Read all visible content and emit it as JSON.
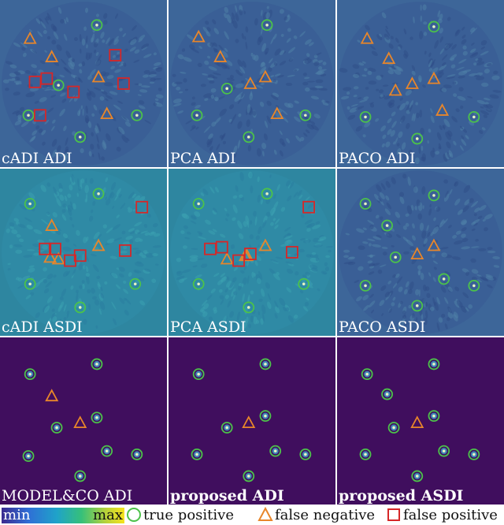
{
  "panels": [
    {
      "label": "cADI ADI",
      "bold": false,
      "theme": "blue",
      "circles": [
        [
          0.58,
          0.15
        ],
        [
          0.35,
          0.51
        ],
        [
          0.17,
          0.69
        ],
        [
          0.82,
          0.69
        ],
        [
          0.48,
          0.82
        ]
      ],
      "triangles": [
        [
          0.18,
          0.23
        ],
        [
          0.31,
          0.34
        ],
        [
          0.59,
          0.46
        ],
        [
          0.64,
          0.68
        ]
      ],
      "squares": [
        [
          0.69,
          0.33
        ],
        [
          0.21,
          0.49
        ],
        [
          0.28,
          0.47
        ],
        [
          0.74,
          0.5
        ],
        [
          0.44,
          0.55
        ],
        [
          0.24,
          0.69
        ]
      ]
    },
    {
      "label": "PCA ADI",
      "bold": false,
      "theme": "blue",
      "circles": [
        [
          0.59,
          0.15
        ],
        [
          0.35,
          0.53
        ],
        [
          0.17,
          0.69
        ],
        [
          0.82,
          0.69
        ],
        [
          0.48,
          0.82
        ]
      ],
      "triangles": [
        [
          0.18,
          0.22
        ],
        [
          0.31,
          0.34
        ],
        [
          0.49,
          0.5
        ],
        [
          0.58,
          0.46
        ],
        [
          0.65,
          0.68
        ]
      ],
      "squares": []
    },
    {
      "label": "PACO ADI",
      "bold": false,
      "theme": "blue",
      "circles": [
        [
          0.58,
          0.16
        ],
        [
          0.17,
          0.7
        ],
        [
          0.82,
          0.7
        ],
        [
          0.48,
          0.83
        ]
      ],
      "triangles": [
        [
          0.18,
          0.23
        ],
        [
          0.31,
          0.35
        ],
        [
          0.35,
          0.54
        ],
        [
          0.45,
          0.5
        ],
        [
          0.58,
          0.47
        ],
        [
          0.63,
          0.66
        ]
      ],
      "squares": []
    },
    {
      "label": "cADI ASDI",
      "bold": false,
      "theme": "teal",
      "circles": [
        [
          0.59,
          0.15
        ],
        [
          0.18,
          0.21
        ],
        [
          0.18,
          0.69
        ],
        [
          0.81,
          0.69
        ],
        [
          0.48,
          0.83
        ]
      ],
      "triangles": [
        [
          0.31,
          0.34
        ],
        [
          0.35,
          0.54
        ],
        [
          0.59,
          0.46
        ],
        [
          0.3,
          0.53
        ]
      ],
      "squares": [
        [
          0.85,
          0.23
        ],
        [
          0.27,
          0.48
        ],
        [
          0.33,
          0.48
        ],
        [
          0.48,
          0.52
        ],
        [
          0.42,
          0.55
        ],
        [
          0.75,
          0.49
        ]
      ]
    },
    {
      "label": "PCA ASDI",
      "bold": false,
      "theme": "teal",
      "circles": [
        [
          0.59,
          0.15
        ],
        [
          0.18,
          0.21
        ],
        [
          0.18,
          0.69
        ],
        [
          0.81,
          0.69
        ],
        [
          0.48,
          0.83
        ]
      ],
      "triangles": [
        [
          0.35,
          0.54
        ],
        [
          0.46,
          0.52
        ],
        [
          0.58,
          0.46
        ],
        [
          0.47,
          0.52
        ]
      ],
      "squares": [
        [
          0.84,
          0.23
        ],
        [
          0.25,
          0.48
        ],
        [
          0.32,
          0.47
        ],
        [
          0.49,
          0.51
        ],
        [
          0.42,
          0.55
        ],
        [
          0.74,
          0.5
        ]
      ]
    },
    {
      "label": "PACO ASDI",
      "bold": false,
      "theme": "blue",
      "circles": [
        [
          0.58,
          0.16
        ],
        [
          0.17,
          0.21
        ],
        [
          0.3,
          0.34
        ],
        [
          0.35,
          0.53
        ],
        [
          0.17,
          0.7
        ],
        [
          0.82,
          0.7
        ],
        [
          0.48,
          0.82
        ],
        [
          0.64,
          0.66
        ]
      ],
      "triangles": [
        [
          0.48,
          0.51
        ],
        [
          0.58,
          0.46
        ]
      ],
      "squares": []
    },
    {
      "label": "MODEL&CO ADI",
      "bold": false,
      "theme": "purple",
      "circles": [
        [
          0.58,
          0.16
        ],
        [
          0.18,
          0.22
        ],
        [
          0.34,
          0.54
        ],
        [
          0.58,
          0.48
        ],
        [
          0.17,
          0.71
        ],
        [
          0.64,
          0.68
        ],
        [
          0.82,
          0.7
        ],
        [
          0.48,
          0.83
        ]
      ],
      "triangles": [
        [
          0.31,
          0.35
        ],
        [
          0.48,
          0.51
        ]
      ],
      "squares": []
    },
    {
      "label": "proposed ADI",
      "bold": true,
      "theme": "purple",
      "circles": [
        [
          0.58,
          0.16
        ],
        [
          0.18,
          0.22
        ],
        [
          0.35,
          0.54
        ],
        [
          0.58,
          0.47
        ],
        [
          0.17,
          0.7
        ],
        [
          0.64,
          0.68
        ],
        [
          0.82,
          0.7
        ],
        [
          0.48,
          0.83
        ]
      ],
      "triangles": [
        [
          0.48,
          0.51
        ]
      ],
      "squares": []
    },
    {
      "label": "proposed ASDI",
      "bold": true,
      "theme": "purple",
      "circles": [
        [
          0.58,
          0.16
        ],
        [
          0.18,
          0.22
        ],
        [
          0.3,
          0.34
        ],
        [
          0.34,
          0.54
        ],
        [
          0.58,
          0.47
        ],
        [
          0.17,
          0.7
        ],
        [
          0.64,
          0.68
        ],
        [
          0.82,
          0.7
        ],
        [
          0.48,
          0.83
        ]
      ],
      "triangles": [
        [
          0.48,
          0.51
        ]
      ],
      "squares": []
    }
  ],
  "themes": {
    "blue": {
      "base": "#3a5f96",
      "noise": "#2f4f88",
      "grain": "#4f7fa8",
      "outer": "#3d6699"
    },
    "teal": {
      "base": "#2f8aa5",
      "noise": "#2a7da0",
      "grain": "#3aa0b0",
      "outer": "#2e86a0"
    },
    "purple": {
      "base": "#400e5e",
      "noise": "#400e5e",
      "grain": "#400e5e",
      "outer": "#400e5e"
    }
  },
  "marker_colors": {
    "circle": "#4cc24a",
    "triangle": "#e8862a",
    "square": "#d62728"
  },
  "legend": {
    "min_label": "min",
    "max_label": "max",
    "true_positive": "true positive",
    "false_negative": "false negative",
    "false_positive": "false positive"
  }
}
